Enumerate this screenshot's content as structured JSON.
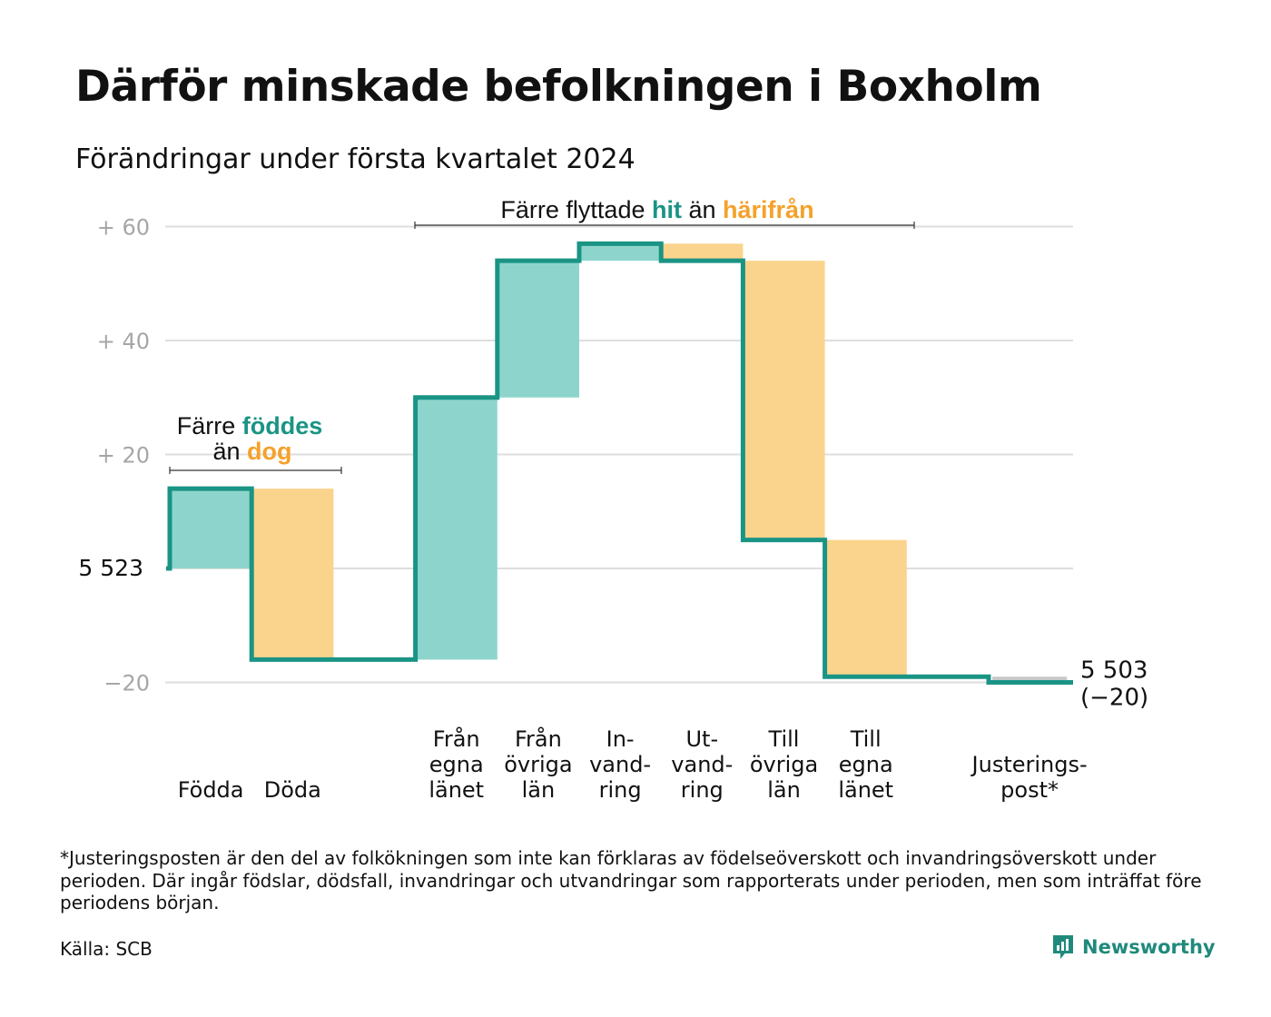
{
  "title": "Därför minskade befolkningen i Boxholm",
  "subtitle": "Förändringar under första kvartalet 2024",
  "colors": {
    "teal_line": "#1a9484",
    "teal_fill": "#8dd5cc",
    "orange_fill": "#fad48c",
    "orange_text": "#f5a12a",
    "grey_fill": "#c8c8c8",
    "grid": "#dedede",
    "tick": "#a6a6a6"
  },
  "chart_data": {
    "type": "waterfall",
    "baseline_label": "5 523",
    "start_value": 5523,
    "y_ticks": [
      {
        "value": 60,
        "label": "+ 60"
      },
      {
        "value": 40,
        "label": "+ 40"
      },
      {
        "value": 20,
        "label": "+ 20"
      },
      {
        "value": 0,
        "label": ""
      },
      {
        "value": -20,
        "label": "−20"
      }
    ],
    "ylim": [
      -20,
      60
    ],
    "steps": [
      {
        "label_lines": [
          "Födda"
        ],
        "change": 14,
        "kind": "in"
      },
      {
        "label_lines": [
          "Döda"
        ],
        "change": -30,
        "kind": "out"
      },
      {
        "label_lines": [],
        "change": 0,
        "kind": "gap"
      },
      {
        "label_lines": [
          "Från",
          "egna",
          "länet"
        ],
        "change": 46,
        "kind": "in"
      },
      {
        "label_lines": [
          "Från",
          "övriga",
          "län"
        ],
        "change": 24,
        "kind": "in"
      },
      {
        "label_lines": [
          "In-",
          "vand-",
          "ring"
        ],
        "change": 3,
        "kind": "in"
      },
      {
        "label_lines": [
          "Ut-",
          "vand-",
          "ring"
        ],
        "change": -3,
        "kind": "out"
      },
      {
        "label_lines": [
          "Till",
          "övriga",
          "län"
        ],
        "change": -49,
        "kind": "out"
      },
      {
        "label_lines": [
          "Till",
          "egna",
          "länet"
        ],
        "change": -24,
        "kind": "out"
      },
      {
        "label_lines": [],
        "change": 0,
        "kind": "gap"
      },
      {
        "label_lines": [
          "Justerings-",
          "post*"
        ],
        "change": -1,
        "kind": "adjust"
      }
    ],
    "end_label_lines": [
      "5 503",
      "(−20)"
    ],
    "annotations": [
      {
        "parts": [
          [
            "Färre ",
            "normal"
          ],
          [
            "föddes",
            "teal"
          ]
        ],
        "parts2": [
          [
            "än ",
            "normal"
          ],
          [
            "dog",
            "orange"
          ]
        ]
      },
      {
        "parts": [
          [
            "Färre flyttade ",
            "normal"
          ],
          [
            "hit",
            "teal"
          ],
          [
            " än ",
            "normal"
          ],
          [
            "härifrån",
            "orange"
          ]
        ]
      }
    ]
  },
  "footnote": "*Justeringsposten är den del av folkökningen som inte kan förklaras av födelseöverskott och invandringsöverskott under perioden. Där ingår födslar, dödsfall, invandringar och utvandringar som rapporterats under perioden, men som inträffat före periodens början.",
  "source": "Källa: SCB",
  "logo": {
    "text": "Newsworthy",
    "icon": "chart-speech-bubble-icon"
  }
}
